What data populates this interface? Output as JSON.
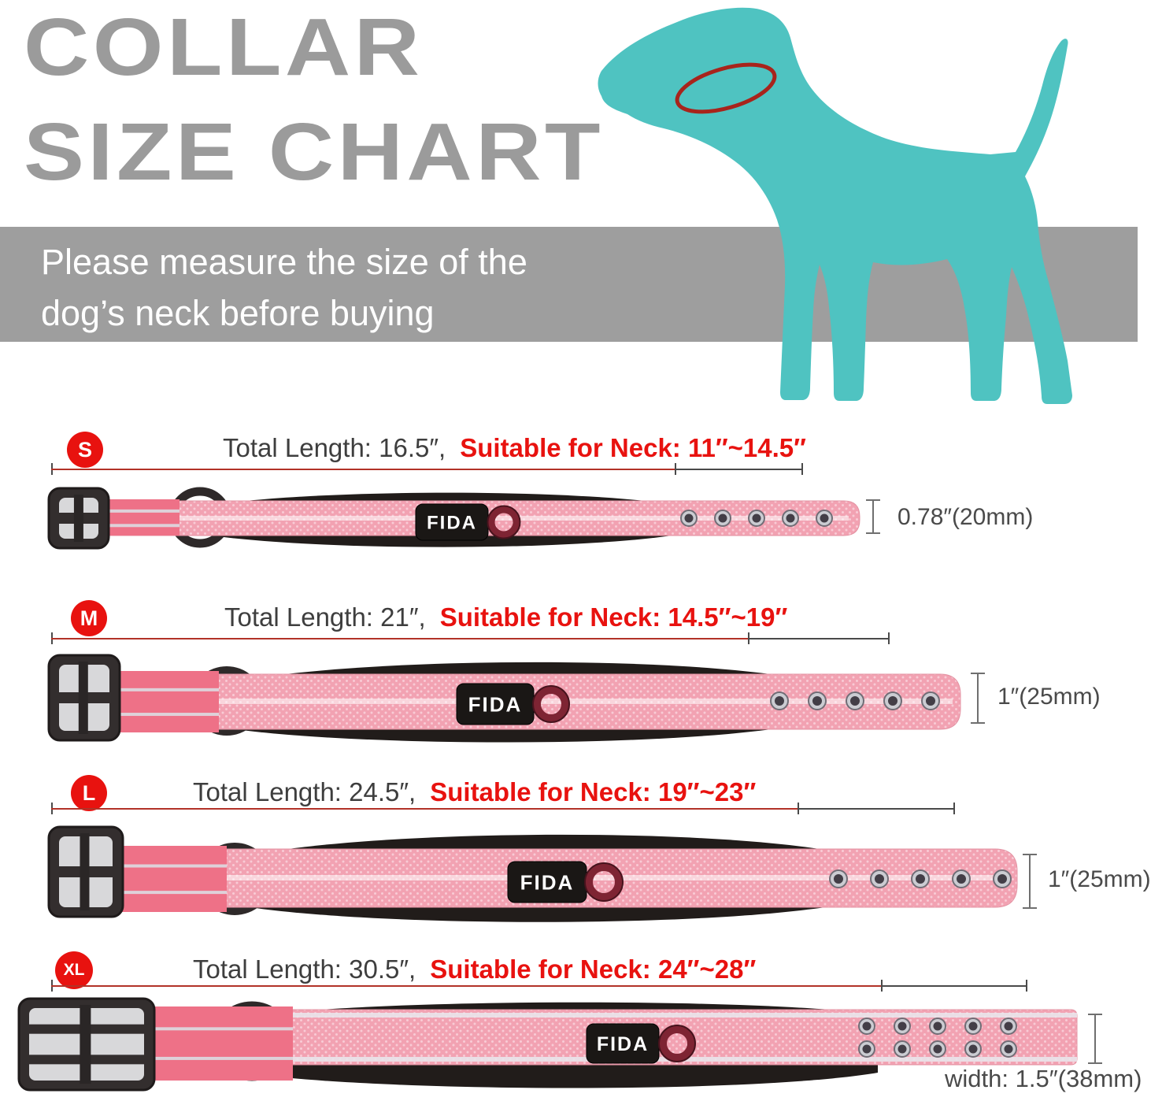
{
  "header": {
    "title_line1": "COLLAR",
    "title_line2": "SIZE CHART",
    "banner_line1": "Please measure the size of the",
    "banner_line2": "dog’s neck before buying"
  },
  "brand": {
    "label_text": "FIDA"
  },
  "colors": {
    "dog_teal": "#4FC3C1",
    "collar_outline_red": "#A8241C",
    "accent_red": "#E8120F",
    "banner_gray": "#9E9E9E",
    "title_gray": "#9B9B9B",
    "webbing_pink": "#F2A2B2",
    "buckle_strap_pink": "#EE7187",
    "measure_line_red": "#B23228"
  },
  "sizes": [
    {
      "code": "S",
      "total_label": "Total Length: 16.5″,",
      "neck_label": "Suitable for Neck: 11″~14.5″",
      "width_label": "0.78″(20mm)",
      "holes": 5,
      "hole_rows": 1
    },
    {
      "code": "M",
      "total_label": "Total Length: 21″,",
      "neck_label": "Suitable for Neck: 14.5″~19″",
      "width_label": "1″(25mm)",
      "holes": 5,
      "hole_rows": 1
    },
    {
      "code": "L",
      "total_label": "Total Length: 24.5″,",
      "neck_label": "Suitable for Neck: 19″~23″",
      "width_label": "1″(25mm)",
      "holes": 5,
      "hole_rows": 1
    },
    {
      "code": "XL",
      "total_label": "Total Length: 30.5″,",
      "neck_label": "Suitable for Neck: 24″~28″",
      "width_label": "width: 1.5″(38mm)",
      "holes": 5,
      "hole_rows": 2
    }
  ]
}
